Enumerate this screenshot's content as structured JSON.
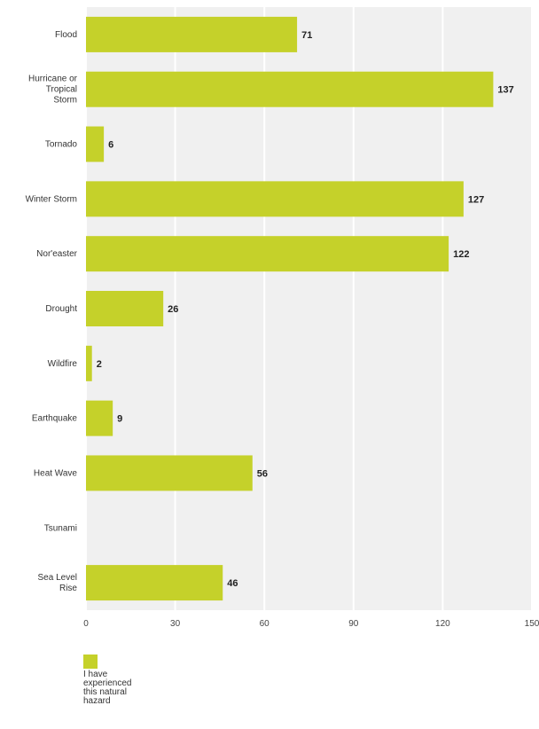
{
  "chart_data": {
    "type": "bar",
    "orientation": "horizontal",
    "categories": [
      [
        "Flood"
      ],
      [
        "Hurricane or",
        "Tropical",
        "Storm"
      ],
      [
        "Tornado"
      ],
      [
        "Winter Storm"
      ],
      [
        "Nor'easter"
      ],
      [
        "Drought"
      ],
      [
        "Wildfire"
      ],
      [
        "Earthquake"
      ],
      [
        "Heat Wave"
      ],
      [
        "Tsunami"
      ],
      [
        "Sea Level",
        "Rise"
      ]
    ],
    "series": [
      {
        "name": "I have experienced this natural hazard",
        "values": [
          71,
          137,
          6,
          127,
          122,
          26,
          2,
          9,
          56,
          0,
          46
        ],
        "labels": [
          "71",
          "137",
          "6",
          "127",
          "122",
          "26",
          "2",
          "9",
          "56",
          "",
          "46"
        ]
      }
    ],
    "xlim": [
      0,
      150
    ],
    "xticks": [
      "0",
      "30",
      "60",
      "90",
      "120",
      "150"
    ],
    "grid": true,
    "legend_position": "bottom-left"
  },
  "colors": {
    "bar": "#c5d12a",
    "plot_background": "#f0f0f0",
    "gridline": "#ffffff"
  }
}
